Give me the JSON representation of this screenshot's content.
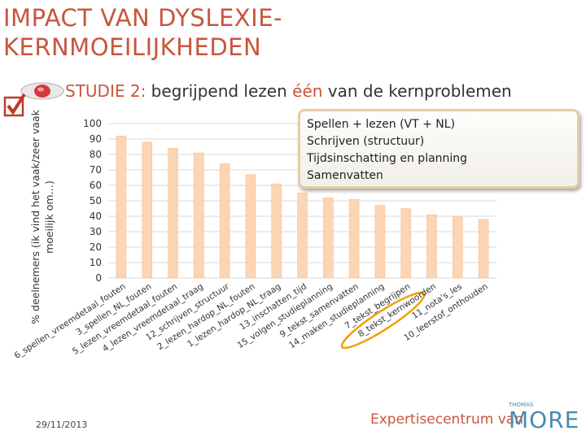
{
  "slide": {
    "title": "IMPACT VAN DYSLEXIE-KERNMOEILIJKHEDEN",
    "subtitle": {
      "study": "STUDIE 2:",
      "text_before": "begrijpend lezen",
      "highlight": "één",
      "text_after": "van de kernproblemen"
    },
    "callout": {
      "lines": [
        "Spellen + lezen (VT + NL)",
        "Schrijven (structuur)",
        "Tijdsinschatting en planning",
        "Samenvatten"
      ]
    },
    "date": "29/11/2013",
    "logo": {
      "text": "Expertisecentrum van",
      "small": "THOMAS",
      "brand": "MORE"
    }
  },
  "colors": {
    "accent": "#c8553d",
    "bar": "#fcd5b5",
    "bar_stroke": "#f5b98c",
    "highlight_ellipse": "#f0a000",
    "grid": "#d9d9d9",
    "callout_border": "#e2cfa8"
  },
  "chart_data": {
    "type": "bar",
    "ylabel": "% deelnemers (ik vind het vaak/zeer vaak moeilijk om…)",
    "ylim": [
      0,
      100
    ],
    "yticks": [
      0,
      10,
      20,
      30,
      40,
      50,
      60,
      70,
      80,
      90,
      100
    ],
    "grid": true,
    "categories": [
      "6_spellen_vreemdetaal_fouten",
      "3_spellen_NL_fouten",
      "5_lezen_vreemdetaal_fouten",
      "4_lezen_vreemdetaal_traag",
      "12_schrijven_structuur",
      "2_lezen_hardop_NL_fouten",
      "1_lezen_hardop_NL_traag",
      "13_inschatten_tijd",
      "15_volgen_studieplanning",
      "9_tekst_samenvatten",
      "14_maken_studieplanning",
      "7_tekst_begrijpen",
      "8_tekst_kernwoorden",
      "11_nota's_les",
      "10_leerstof_onthouden"
    ],
    "values": [
      92,
      88,
      84,
      81,
      74,
      67,
      61,
      55,
      52,
      51,
      47,
      45,
      41,
      40,
      38
    ],
    "highlighted_category": "7_tekst_begrijpen"
  }
}
